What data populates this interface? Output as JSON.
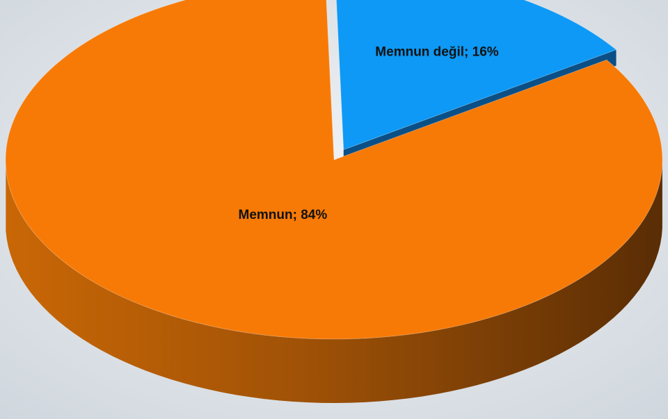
{
  "chart_data": {
    "type": "pie",
    "style": "3d-exploded",
    "slices": [
      {
        "name": "Memnun değil",
        "value": 16,
        "label": "Memnun değil; 16%",
        "color": "#0d99f5",
        "side_color": "#0a4f86"
      },
      {
        "name": "Memnun",
        "value": 84,
        "label": "Memnun; 84%",
        "color": "#f77a06",
        "side_color": "#b05606"
      }
    ],
    "legend": "none"
  }
}
